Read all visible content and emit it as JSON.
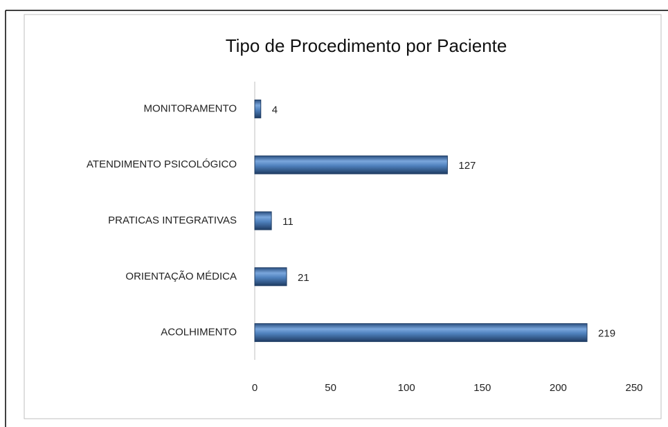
{
  "chart_data": {
    "type": "bar",
    "orientation": "horizontal",
    "title": "Tipo de Procedimento por Paciente",
    "categories": [
      "MONITORAMENTO",
      "ATENDIMENTO PSICOLÓGICO",
      "PRATICAS INTEGRATIVAS",
      "ORIENTAÇÃO MÉDICA",
      "ACOLHIMENTO"
    ],
    "values": [
      4,
      127,
      11,
      21,
      219
    ],
    "color": "#4f81bd",
    "xlim": [
      0,
      250
    ],
    "xticks": [
      0,
      50,
      100,
      150,
      200,
      250
    ],
    "grid": false
  }
}
